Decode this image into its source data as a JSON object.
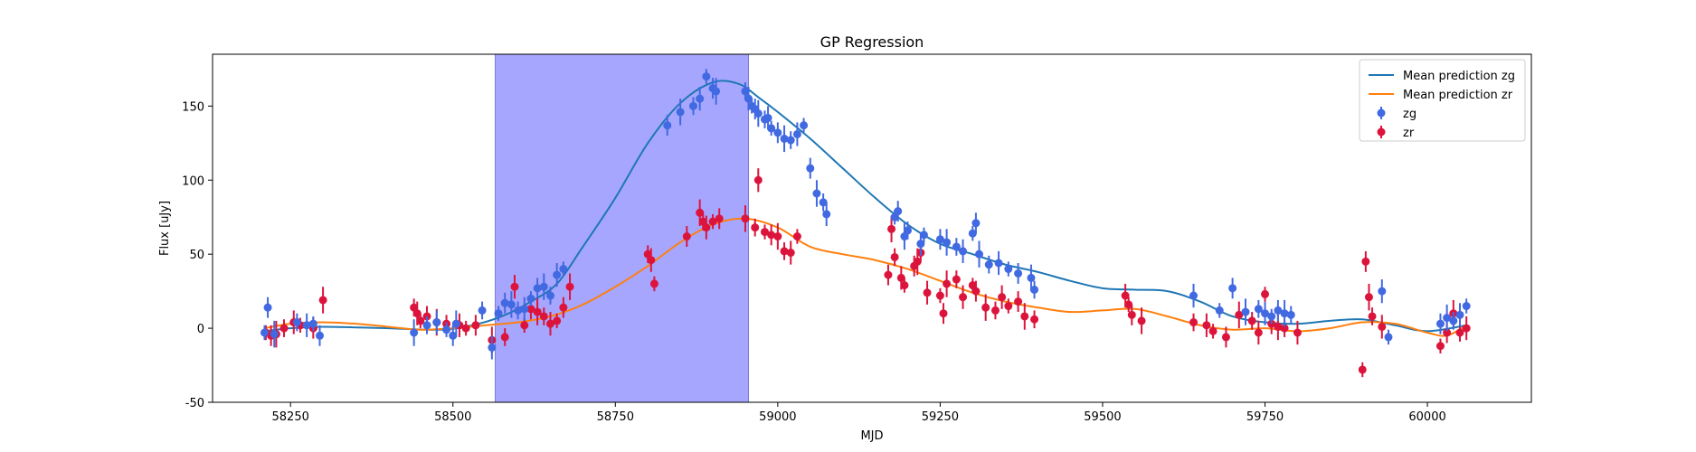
{
  "chart_data": {
    "type": "scatter",
    "title": "GP Regression",
    "xlabel": "MJD",
    "ylabel": "Flux [uJy]",
    "xlim": [
      58130,
      60160
    ],
    "ylim": [
      -50,
      185
    ],
    "xticks": [
      58250,
      58500,
      58750,
      59000,
      59250,
      59500,
      59750,
      60000
    ],
    "yticks": [
      -50,
      0,
      50,
      100,
      150
    ],
    "highlight_span": [
      58565,
      58955
    ],
    "highlight_color": "#a6a6ff",
    "legend": {
      "location": "upper right",
      "entries": [
        "Mean prediction zg",
        "Mean prediction zr",
        "zg",
        "zr"
      ]
    },
    "series": [
      {
        "name": "Mean prediction zg",
        "kind": "line",
        "color": "#1f77b4",
        "x": [
          58210,
          58250,
          58300,
          58400,
          58480,
          58530,
          58575,
          58620,
          58660,
          58700,
          58750,
          58800,
          58850,
          58900,
          58940,
          58970,
          59000,
          59050,
          59100,
          59150,
          59200,
          59250,
          59300,
          59350,
          59400,
          59450,
          59500,
          59550,
          59600,
          59650,
          59700,
          59750,
          59800,
          59850,
          59900,
          59950,
          60000,
          60060
        ],
        "y": [
          -2,
          0,
          1,
          0,
          -1,
          2,
          8,
          18,
          30,
          55,
          88,
          125,
          152,
          166,
          165,
          156,
          146,
          128,
          108,
          88,
          70,
          57,
          50,
          43,
          38,
          32,
          27,
          26,
          25,
          18,
          8,
          4,
          3,
          5,
          6,
          2,
          -2,
          2
        ]
      },
      {
        "name": "Mean prediction zr",
        "kind": "line",
        "color": "#ff7f0e",
        "x": [
          58210,
          58250,
          58300,
          58350,
          58400,
          58450,
          58500,
          58550,
          58600,
          58650,
          58700,
          58750,
          58800,
          58850,
          58900,
          58950,
          59000,
          59050,
          59100,
          59150,
          59200,
          59250,
          59300,
          59350,
          59400,
          59450,
          59500,
          59550,
          59600,
          59650,
          59700,
          59750,
          59800,
          59850,
          59900,
          59950,
          60000,
          60030,
          60060
        ],
        "y": [
          0,
          3,
          4,
          3,
          1,
          -1,
          0,
          2,
          4,
          8,
          16,
          28,
          42,
          58,
          70,
          74,
          68,
          55,
          50,
          46,
          40,
          32,
          24,
          18,
          14,
          11,
          12,
          13,
          8,
          2,
          -1,
          0,
          -2,
          0,
          4,
          3,
          -3,
          -5,
          2
        ]
      },
      {
        "name": "zg",
        "kind": "points",
        "color": "#4169e1",
        "x": [
          58210,
          58215,
          58225,
          58260,
          58275,
          58285,
          58295,
          58440,
          58460,
          58475,
          58490,
          58500,
          58505,
          58545,
          58560,
          58570,
          58580,
          58590,
          58600,
          58610,
          58620,
          58630,
          58640,
          58650,
          58660,
          58670,
          58830,
          58850,
          58870,
          58880,
          58890,
          58900,
          58905,
          58950,
          58955,
          58960,
          58965,
          58970,
          58980,
          58985,
          58990,
          59000,
          59010,
          59020,
          59030,
          59040,
          59050,
          59060,
          59070,
          59075,
          59180,
          59185,
          59195,
          59200,
          59220,
          59225,
          59250,
          59260,
          59275,
          59285,
          59300,
          59305,
          59310,
          59325,
          59340,
          59355,
          59370,
          59390,
          59395,
          59640,
          59680,
          59700,
          59720,
          59740,
          59750,
          59760,
          59770,
          59780,
          59790,
          59930,
          59940,
          60020,
          60030,
          60040,
          60050,
          60060
        ],
        "y": [
          -3,
          14,
          -4,
          4,
          2,
          3,
          -5,
          -3,
          2,
          4,
          -1,
          -5,
          3,
          12,
          -13,
          10,
          17,
          16,
          12,
          13,
          20,
          27,
          28,
          22,
          36,
          40,
          137,
          146,
          150,
          155,
          170,
          162,
          160,
          160,
          155,
          150,
          148,
          145,
          141,
          142,
          135,
          132,
          128,
          127,
          131,
          137,
          108,
          91,
          85,
          77,
          75,
          79,
          62,
          66,
          57,
          63,
          60,
          58,
          55,
          52,
          64,
          71,
          50,
          43,
          44,
          40,
          37,
          34,
          26,
          22,
          12,
          27,
          11,
          13,
          10,
          8,
          12,
          10,
          9,
          25,
          -6,
          3,
          7,
          5,
          9,
          15
        ]
      },
      {
        "name": "zr",
        "kind": "points",
        "color": "#dc143c",
        "x": [
          58212,
          58220,
          58228,
          58240,
          58255,
          58265,
          58285,
          58300,
          58440,
          58445,
          58450,
          58460,
          58475,
          58490,
          58510,
          58520,
          58535,
          58560,
          58580,
          58595,
          58610,
          58620,
          58630,
          58640,
          58650,
          58660,
          58670,
          58680,
          58800,
          58805,
          58810,
          58860,
          58880,
          58885,
          58890,
          58900,
          58910,
          58950,
          58965,
          58970,
          58980,
          58990,
          59000,
          59010,
          59020,
          59030,
          59170,
          59175,
          59180,
          59190,
          59195,
          59210,
          59215,
          59220,
          59230,
          59250,
          59255,
          59260,
          59275,
          59285,
          59300,
          59305,
          59320,
          59335,
          59345,
          59355,
          59370,
          59380,
          59395,
          59535,
          59540,
          59545,
          59560,
          59640,
          59660,
          59670,
          59690,
          59710,
          59730,
          59740,
          59750,
          59760,
          59770,
          59780,
          59800,
          59900,
          59905,
          59910,
          59915,
          59930,
          60020,
          60030,
          60040,
          60050,
          60060
        ],
        "y": [
          -3,
          -5,
          -4,
          0,
          4,
          2,
          0,
          19,
          14,
          10,
          5,
          8,
          4,
          3,
          2,
          0,
          2,
          -8,
          -6,
          28,
          2,
          13,
          11,
          8,
          3,
          5,
          14,
          28,
          50,
          46,
          30,
          62,
          78,
          72,
          68,
          72,
          74,
          74,
          68,
          100,
          65,
          63,
          62,
          52,
          51,
          62,
          36,
          67,
          48,
          34,
          29,
          42,
          45,
          51,
          24,
          22,
          10,
          30,
          33,
          21,
          29,
          25,
          14,
          12,
          21,
          15,
          18,
          8,
          6,
          22,
          16,
          9,
          5,
          4,
          2,
          -2,
          -6,
          9,
          5,
          -3,
          23,
          3,
          1,
          0,
          -3,
          -28,
          45,
          21,
          8,
          1,
          -12,
          -3,
          10,
          -3,
          0
        ]
      }
    ]
  }
}
